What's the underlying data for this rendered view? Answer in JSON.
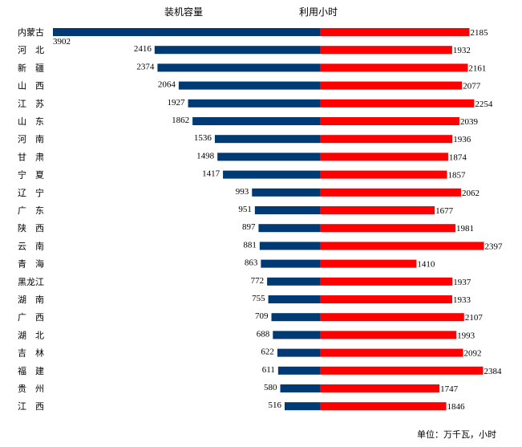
{
  "chart_data": {
    "type": "bar",
    "orientation": "horizontal-butterfly",
    "categories": [
      "内蒙古",
      "河　北",
      "新　疆",
      "山　西",
      "江　苏",
      "山　东",
      "河　南",
      "甘　肃",
      "宁　夏",
      "辽　宁",
      "广　东",
      "陕　西",
      "云　南",
      "青　海",
      "黑龙江",
      "湖　南",
      "广　西",
      "湖　北",
      "吉　林",
      "福　建",
      "贵　州",
      "江　西"
    ],
    "series": [
      {
        "name": "装机容量",
        "color": "#003a75",
        "side": "left",
        "values": [
          3902,
          2416,
          2374,
          2064,
          1927,
          1862,
          1536,
          1498,
          1417,
          993,
          951,
          897,
          881,
          863,
          772,
          755,
          709,
          688,
          622,
          611,
          580,
          516
        ]
      },
      {
        "name": "利用小时",
        "color": "#ff0000",
        "side": "right",
        "values": [
          2185,
          1932,
          2161,
          2077,
          2254,
          2039,
          1936,
          1874,
          1857,
          2062,
          1677,
          1981,
          2397,
          1410,
          1937,
          1933,
          2107,
          1993,
          2092,
          2384,
          1747,
          1846
        ]
      }
    ],
    "unit_note": "单位：万千瓦，小时",
    "grid": false,
    "legend": "top"
  }
}
